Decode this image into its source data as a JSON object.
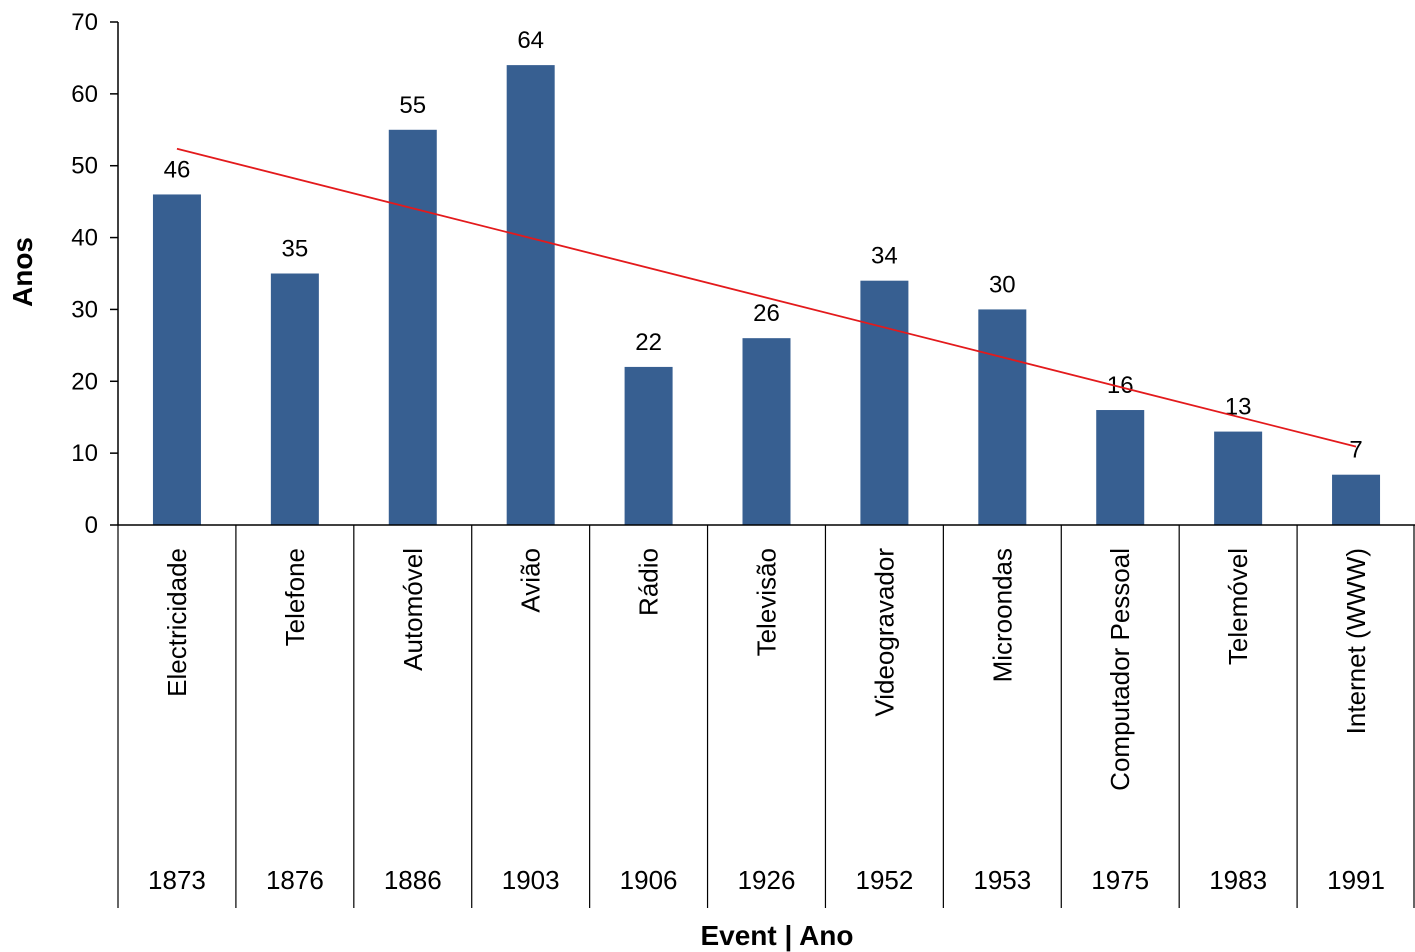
{
  "chart_data": {
    "type": "bar",
    "categories": [
      "Electricidade",
      "Telefone",
      "Automóvel",
      "Avião",
      "Rádio",
      "Televisão",
      "Videogravador",
      "Microondas",
      "Computador Pessoal",
      "Telemóvel",
      "Internet  (WWW)"
    ],
    "years": [
      "1873",
      "1876",
      "1886",
      "1903",
      "1906",
      "1926",
      "1952",
      "1953",
      "1975",
      "1983",
      "1991"
    ],
    "values": [
      46,
      35,
      55,
      64,
      22,
      26,
      34,
      30,
      16,
      13,
      7
    ],
    "data_labels": [
      "46",
      "35",
      "55",
      "64",
      "22",
      "26",
      "34",
      "30",
      "16",
      "13",
      "7"
    ],
    "trendline": {
      "type": "linear",
      "color": "#e31a1c"
    },
    "xlabel": "Event | Ano",
    "ylabel": "Anos",
    "ylim": [
      0,
      70
    ],
    "yticks": [
      0,
      10,
      20,
      30,
      40,
      50,
      60,
      70
    ],
    "bar_color": "#375f91",
    "grid": false,
    "legend": "none"
  }
}
